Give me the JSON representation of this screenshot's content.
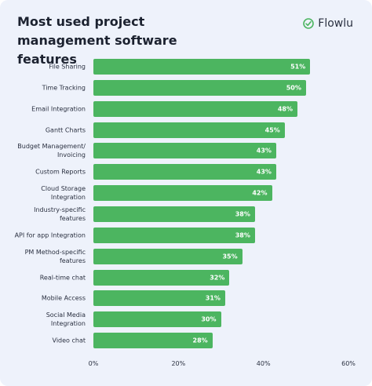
{
  "logo": "Flowlu",
  "chart_data": {
    "type": "barh",
    "title": "Most used project management software features",
    "categories": [
      "File Sharing",
      "Time Tracking",
      "Email Integration",
      "Gantt Charts",
      "Budget Management/\nInvoicing",
      "Custom Reports",
      "Cloud Storage\nIntegration",
      "Industry-specific\nfeatures",
      "API for app Integration",
      "PM Method-specific\nfeatures",
      "Real-time chat",
      "Mobile Access",
      "Social Media\nIntegration",
      "Video chat"
    ],
    "values": [
      51,
      50,
      48,
      45,
      43,
      43,
      42,
      38,
      38,
      35,
      32,
      31,
      30,
      28
    ],
    "value_labels": [
      "51%",
      "50%",
      "48%",
      "45%",
      "43%",
      "43%",
      "42%",
      "38%",
      "38%",
      "35%",
      "32%",
      "31%",
      "30%",
      "28%"
    ],
    "color": "#4cb560",
    "xlim": [
      0,
      60
    ],
    "xticks": [
      {
        "value": 0,
        "label": "0%"
      },
      {
        "value": 20,
        "label": "20%"
      },
      {
        "value": 40,
        "label": "40%"
      },
      {
        "value": 60,
        "label": "60%"
      }
    ],
    "grid": false
  }
}
